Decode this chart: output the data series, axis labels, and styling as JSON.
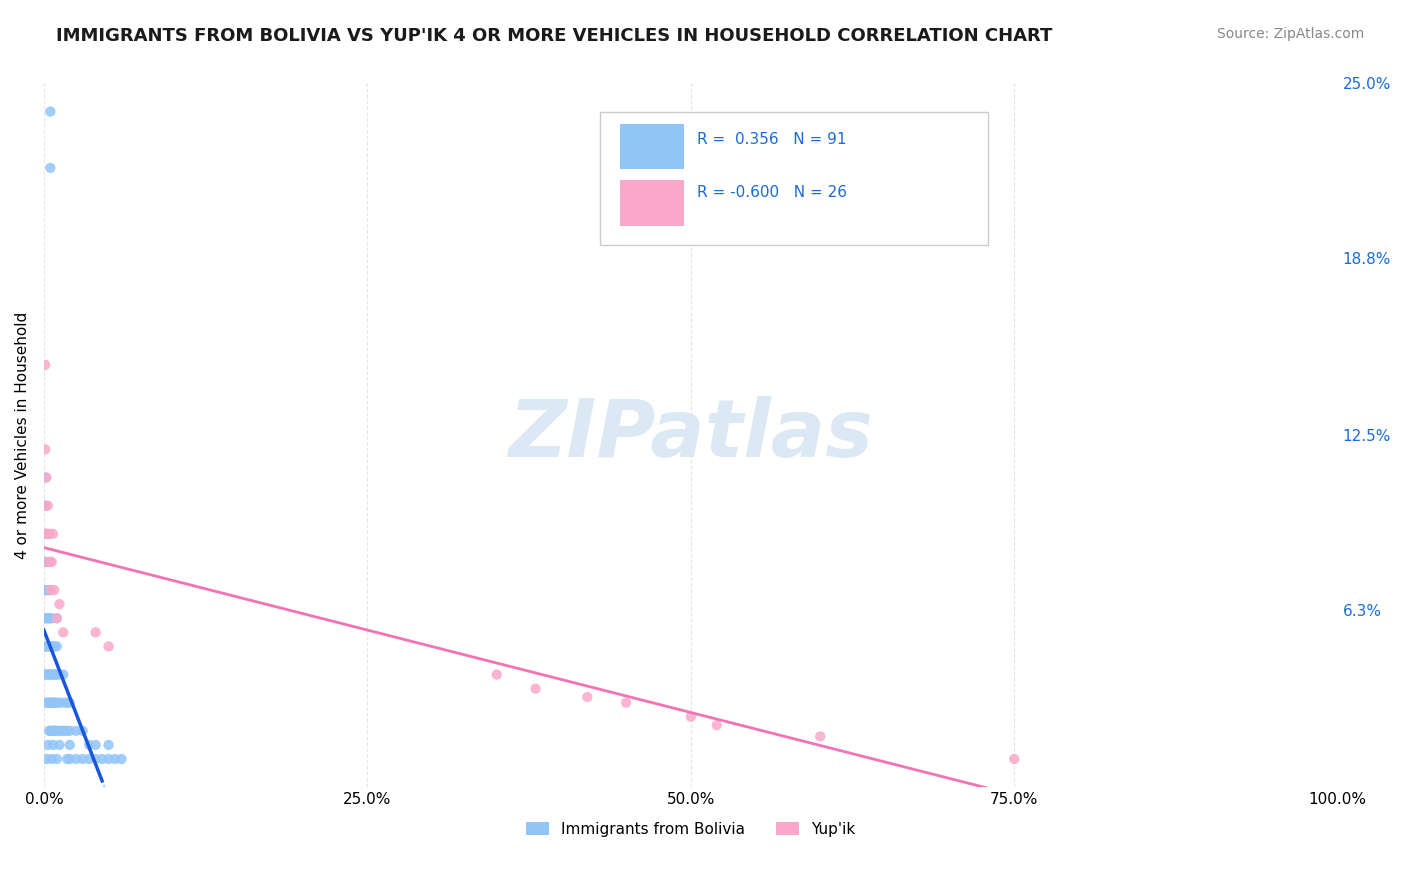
{
  "title": "IMMIGRANTS FROM BOLIVIA VS YUP'IK 4 OR MORE VEHICLES IN HOUSEHOLD CORRELATION CHART",
  "source_text": "Source: ZipAtlas.com",
  "ylabel": "4 or more Vehicles in Household",
  "right_yticklabels": [
    "6.3%",
    "12.5%",
    "18.8%",
    "25.0%"
  ],
  "right_ytick_vals": [
    0.063,
    0.125,
    0.188,
    0.25
  ],
  "xlim": [
    0.0,
    1.0
  ],
  "ylim": [
    0.0,
    0.25
  ],
  "bolivia_R": 0.356,
  "bolivia_N": 91,
  "yupik_R": -0.6,
  "yupik_N": 26,
  "bolivia_color": "#92c5f7",
  "yupik_color": "#f9a8c9",
  "bolivia_line_color": "#1a56db",
  "yupik_line_color": "#f472b6",
  "dashed_line_color": "#92c5f7",
  "watermark_text": "ZIPatlas",
  "watermark_color": "#dde8f5",
  "background_color": "#ffffff",
  "grid_color": "#e0e0e0",
  "bolivia_scatter_x": [
    0.001,
    0.001,
    0.001,
    0.001,
    0.001,
    0.001,
    0.001,
    0.001,
    0.002,
    0.002,
    0.002,
    0.002,
    0.002,
    0.002,
    0.002,
    0.003,
    0.003,
    0.003,
    0.003,
    0.003,
    0.003,
    0.004,
    0.004,
    0.004,
    0.004,
    0.004,
    0.005,
    0.005,
    0.005,
    0.005,
    0.005,
    0.005,
    0.005,
    0.005,
    0.005,
    0.006,
    0.006,
    0.006,
    0.006,
    0.006,
    0.007,
    0.007,
    0.007,
    0.007,
    0.008,
    0.008,
    0.008,
    0.008,
    0.009,
    0.009,
    0.009,
    0.01,
    0.01,
    0.01,
    0.01,
    0.01,
    0.012,
    0.012,
    0.012,
    0.015,
    0.015,
    0.015,
    0.018,
    0.018,
    0.02,
    0.02,
    0.02,
    0.025,
    0.025,
    0.03,
    0.03,
    0.035,
    0.035,
    0.04,
    0.04,
    0.045,
    0.05,
    0.05,
    0.055,
    0.06,
    0.002,
    0.003,
    0.004,
    0.006,
    0.007,
    0.008,
    0.01,
    0.012,
    0.015,
    0.018,
    0.02
  ],
  "bolivia_scatter_y": [
    0.04,
    0.05,
    0.06,
    0.07,
    0.08,
    0.09,
    0.1,
    0.11,
    0.03,
    0.04,
    0.05,
    0.06,
    0.07,
    0.08,
    0.09,
    0.03,
    0.04,
    0.05,
    0.06,
    0.07,
    0.08,
    0.03,
    0.04,
    0.05,
    0.06,
    0.07,
    0.02,
    0.03,
    0.04,
    0.05,
    0.06,
    0.07,
    0.08,
    0.22,
    0.24,
    0.02,
    0.03,
    0.04,
    0.05,
    0.06,
    0.02,
    0.03,
    0.04,
    0.05,
    0.02,
    0.03,
    0.04,
    0.05,
    0.02,
    0.03,
    0.04,
    0.02,
    0.03,
    0.04,
    0.05,
    0.06,
    0.02,
    0.03,
    0.04,
    0.02,
    0.03,
    0.04,
    0.02,
    0.03,
    0.01,
    0.02,
    0.03,
    0.01,
    0.02,
    0.01,
    0.02,
    0.01,
    0.015,
    0.01,
    0.015,
    0.01,
    0.01,
    0.015,
    0.01,
    0.01,
    0.01,
    0.015,
    0.02,
    0.01,
    0.015,
    0.02,
    0.01,
    0.015,
    0.02,
    0.01,
    0.015
  ],
  "yupik_scatter_x": [
    0.001,
    0.001,
    0.001,
    0.002,
    0.002,
    0.003,
    0.003,
    0.004,
    0.005,
    0.005,
    0.006,
    0.007,
    0.008,
    0.01,
    0.012,
    0.015,
    0.04,
    0.05,
    0.35,
    0.38,
    0.42,
    0.45,
    0.5,
    0.52,
    0.6,
    0.75
  ],
  "yupik_scatter_y": [
    0.1,
    0.12,
    0.15,
    0.09,
    0.11,
    0.08,
    0.1,
    0.09,
    0.07,
    0.08,
    0.08,
    0.09,
    0.07,
    0.06,
    0.065,
    0.055,
    0.055,
    0.05,
    0.04,
    0.035,
    0.032,
    0.03,
    0.025,
    0.022,
    0.018,
    0.01
  ],
  "xtick_vals": [
    0.0,
    0.25,
    0.5,
    0.75,
    1.0
  ],
  "xtick_labels": [
    "0.0%",
    "25.0%",
    "50.0%",
    "75.0%",
    "100.0%"
  ],
  "legend_label_bolivia": "Immigrants from Bolivia",
  "legend_label_yupik": "Yup'ik"
}
